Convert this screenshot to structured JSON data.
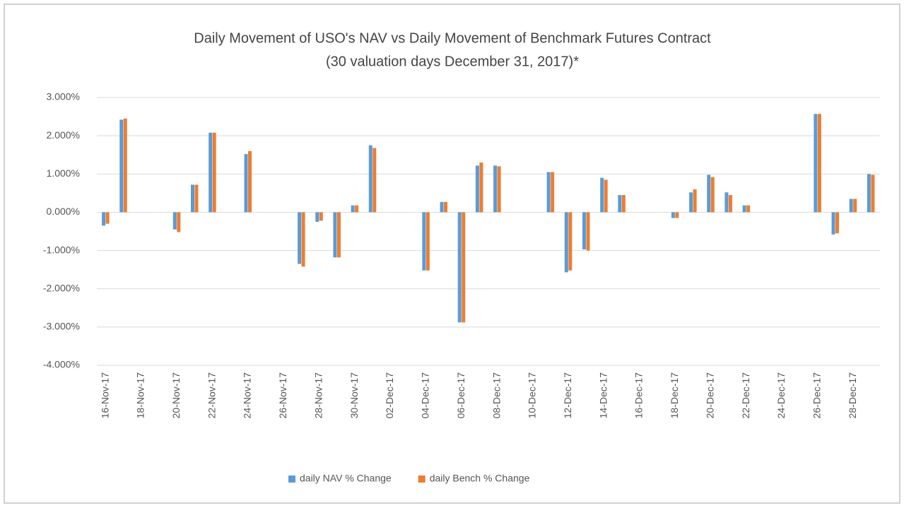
{
  "chart_data": {
    "type": "bar",
    "title": [
      "Daily Movement of USO's NAV vs Daily Movement of Benchmark Futures Contract",
      "(30 valuation days December 31, 2017)*"
    ],
    "categories": [
      "16-Nov-17",
      null,
      "18-Nov-17",
      null,
      "20-Nov-17",
      null,
      "22-Nov-17",
      null,
      "24-Nov-17",
      null,
      "26-Nov-17",
      null,
      "28-Nov-17",
      null,
      "30-Nov-17",
      null,
      "02-Dec-17",
      null,
      "04-Dec-17",
      null,
      "06-Dec-17",
      null,
      "08-Dec-17",
      null,
      "10-Dec-17",
      null,
      "12-Dec-17",
      null,
      "14-Dec-17",
      null,
      "16-Dec-17",
      null,
      "18-Dec-17",
      null,
      "20-Dec-17",
      null,
      "22-Dec-17",
      null,
      "24-Dec-17",
      null,
      "26-Dec-17",
      null,
      "28-Dec-17",
      null
    ],
    "series": [
      {
        "name": "daily NAV % Change",
        "color": "#5b9bd5",
        "values": [
          -0.35,
          2.42,
          null,
          null,
          -0.45,
          0.72,
          2.08,
          null,
          1.52,
          null,
          null,
          -1.35,
          -0.25,
          -1.18,
          0.18,
          1.75,
          null,
          null,
          -1.52,
          0.27,
          -2.88,
          1.22,
          1.22,
          null,
          null,
          1.05,
          -1.57,
          -0.97,
          0.9,
          0.45,
          null,
          null,
          -0.15,
          0.52,
          0.98,
          0.52,
          0.18,
          null,
          null,
          null,
          2.57,
          -0.58,
          0.35,
          1.0
        ]
      },
      {
        "name": "daily Bench % Change",
        "color": "#ed7d31",
        "values": [
          -0.3,
          2.45,
          null,
          null,
          -0.52,
          0.72,
          2.08,
          null,
          1.6,
          null,
          null,
          -1.42,
          -0.22,
          -1.18,
          0.18,
          1.68,
          null,
          null,
          -1.52,
          0.27,
          -2.88,
          1.3,
          1.2,
          null,
          null,
          1.05,
          -1.52,
          -1.0,
          0.85,
          0.45,
          null,
          null,
          -0.15,
          0.6,
          0.92,
          0.45,
          0.18,
          null,
          null,
          null,
          2.57,
          -0.55,
          0.35,
          0.98
        ]
      }
    ],
    "ylim": [
      -4,
      3
    ],
    "yticks": [
      {
        "value": -4,
        "label": "-4.000%"
      },
      {
        "value": -3,
        "label": "-3.000%"
      },
      {
        "value": -2,
        "label": "-2.000%"
      },
      {
        "value": -1,
        "label": "-1.000%"
      },
      {
        "value": 0,
        "label": "0.000%"
      },
      {
        "value": 1,
        "label": "1.000%"
      },
      {
        "value": 2,
        "label": "2.000%"
      },
      {
        "value": 3,
        "label": "3.000%"
      }
    ],
    "grid": true,
    "legend": "bottom"
  }
}
